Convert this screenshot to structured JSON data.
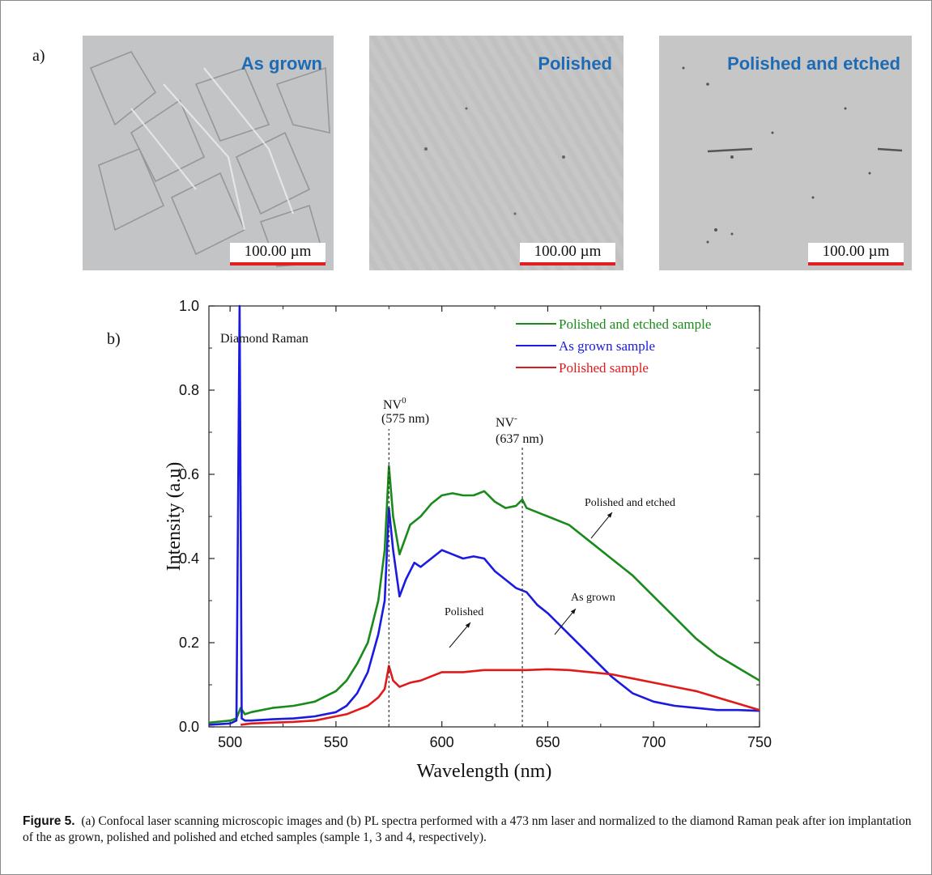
{
  "panel_a_label": "a)",
  "panel_b_label": "b)",
  "micrographs": [
    {
      "title": "As grown",
      "scale": "100.00 µm",
      "bg": "#c2c4c6"
    },
    {
      "title": "Polished",
      "scale": "100.00 µm",
      "bg": "#c7c7c7"
    },
    {
      "title": "Polished and etched",
      "scale": "100.00 µm",
      "bg": "#c6c6c6"
    }
  ],
  "chart_data": {
    "type": "line",
    "xlabel": "Wavelength (nm)",
    "ylabel": "Intensity (a.u)",
    "xlim": [
      490,
      750
    ],
    "ylim": [
      0,
      1.0
    ],
    "xticks": [
      500,
      550,
      600,
      650,
      700,
      750
    ],
    "yticks": [
      "0.0",
      "0.2",
      "0.4",
      "0.6",
      "0.8",
      "1.0"
    ],
    "legend_position": "top-right",
    "series": [
      {
        "name": "Polished and etched sample",
        "color": "#1a8a1a",
        "x": [
          490,
          500,
          503,
          505,
          507,
          510,
          520,
          530,
          540,
          550,
          555,
          560,
          565,
          570,
          573,
          575,
          577,
          580,
          585,
          590,
          595,
          600,
          605,
          610,
          615,
          620,
          625,
          630,
          635,
          638,
          640,
          645,
          650,
          660,
          670,
          680,
          690,
          700,
          710,
          720,
          730,
          740,
          750
        ],
        "y": [
          0.01,
          0.015,
          0.02,
          0.045,
          0.03,
          0.035,
          0.045,
          0.05,
          0.06,
          0.085,
          0.11,
          0.15,
          0.2,
          0.3,
          0.42,
          0.62,
          0.5,
          0.41,
          0.48,
          0.5,
          0.53,
          0.55,
          0.555,
          0.55,
          0.55,
          0.56,
          0.535,
          0.52,
          0.525,
          0.54,
          0.52,
          0.51,
          0.5,
          0.48,
          0.44,
          0.4,
          0.36,
          0.31,
          0.26,
          0.21,
          0.17,
          0.14,
          0.11
        ]
      },
      {
        "name": "As grown sample",
        "color": "#1a1ae0",
        "x": [
          490,
          500,
          503,
          504.5,
          505.5,
          507,
          510,
          520,
          530,
          540,
          550,
          555,
          560,
          565,
          570,
          573,
          575,
          577,
          580,
          583,
          587,
          590,
          595,
          600,
          605,
          610,
          615,
          620,
          625,
          630,
          635,
          640,
          645,
          650,
          660,
          670,
          680,
          690,
          700,
          710,
          720,
          730,
          740,
          750
        ],
        "y": [
          0.005,
          0.008,
          0.015,
          1.0,
          0.02,
          0.015,
          0.015,
          0.018,
          0.02,
          0.025,
          0.035,
          0.05,
          0.08,
          0.13,
          0.22,
          0.3,
          0.52,
          0.42,
          0.31,
          0.35,
          0.39,
          0.38,
          0.4,
          0.42,
          0.41,
          0.4,
          0.405,
          0.4,
          0.37,
          0.35,
          0.33,
          0.32,
          0.29,
          0.27,
          0.22,
          0.17,
          0.12,
          0.08,
          0.06,
          0.05,
          0.045,
          0.04,
          0.04,
          0.038
        ]
      },
      {
        "name": "Polished sample",
        "color": "#e01a1a",
        "x": [
          505,
          510,
          520,
          530,
          540,
          550,
          555,
          560,
          565,
          570,
          573,
          575,
          577,
          580,
          585,
          590,
          595,
          600,
          610,
          620,
          630,
          640,
          650,
          660,
          670,
          680,
          690,
          700,
          710,
          720,
          730,
          740,
          750
        ],
        "y": [
          0.005,
          0.008,
          0.01,
          0.012,
          0.015,
          0.025,
          0.03,
          0.04,
          0.05,
          0.07,
          0.09,
          0.145,
          0.11,
          0.095,
          0.105,
          0.11,
          0.12,
          0.13,
          0.13,
          0.135,
          0.135,
          0.135,
          0.137,
          0.135,
          0.13,
          0.125,
          0.115,
          0.105,
          0.095,
          0.085,
          0.07,
          0.055,
          0.04
        ]
      }
    ],
    "annotations": {
      "diamond_raman": "Diamond Raman",
      "nv0_label": "NV",
      "nv0_sup": "0",
      "nv0_wl": "(575 nm)",
      "nv0_x": 575,
      "nvm_label": "NV",
      "nvm_sup": "-",
      "nvm_wl": "(637 nm)",
      "nvm_x": 638,
      "polished_and_etched": "Polished and etched",
      "as_grown": "As grown",
      "polished": "Polished"
    }
  },
  "caption": {
    "label": "Figure 5.",
    "text": "(a) Confocal laser scanning microscopic images and (b) PL spectra performed with a 473 nm laser and normalized to the diamond Raman peak after ion implantation of the as grown, polished and polished and etched samples (sample 1, 3 and 4, respectively)."
  }
}
